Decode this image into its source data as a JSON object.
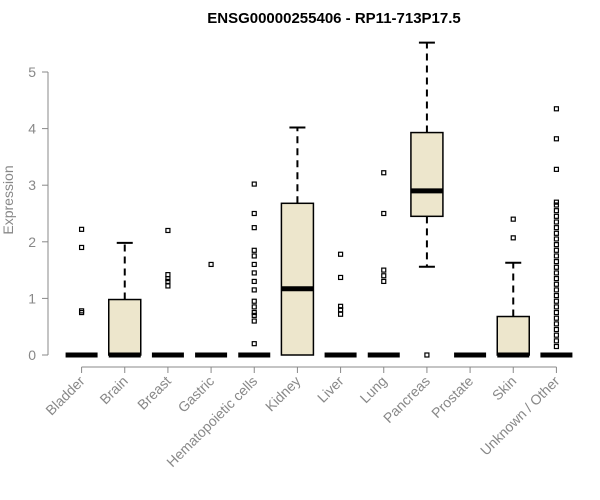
{
  "chart_data": {
    "type": "boxplot",
    "title": "ENSG00000255406 - RP11-713P17.5",
    "xlabel": "",
    "ylabel": "Expression",
    "ylim": [
      0,
      5.5
    ],
    "yticks": [
      0,
      1,
      2,
      3,
      4,
      5
    ],
    "grid": false,
    "box_fill": "#ede6cc",
    "categories": [
      "Bladder",
      "Brain",
      "Breast",
      "Gastric",
      "Hematopoietic cells",
      "Kidney",
      "Liver",
      "Lung",
      "Pancreas",
      "Prostate",
      "Skin",
      "Unknown / Other"
    ],
    "boxes": [
      {
        "min": 0,
        "q1": 0,
        "median": 0,
        "q3": 0,
        "max": 0,
        "outliers": [
          2.22,
          1.9,
          0.78,
          0.75
        ]
      },
      {
        "min": 0,
        "q1": 0,
        "median": 0,
        "q3": 0.98,
        "max": 1.98,
        "outliers": []
      },
      {
        "min": 0,
        "q1": 0,
        "median": 0,
        "q3": 0,
        "max": 0,
        "outliers": [
          2.2,
          1.42,
          1.35,
          1.3,
          1.22
        ]
      },
      {
        "min": 0,
        "q1": 0,
        "median": 0,
        "q3": 0,
        "max": 0,
        "outliers": [
          1.6
        ]
      },
      {
        "min": 0,
        "q1": 0,
        "median": 0,
        "q3": 0,
        "max": 0,
        "outliers": [
          3.02,
          2.5,
          2.25,
          1.85,
          1.75,
          1.6,
          1.45,
          1.3,
          1.15,
          0.95,
          0.85,
          0.75,
          0.7,
          0.6,
          0.2
        ]
      },
      {
        "min": 0,
        "q1": 0,
        "median": 1.17,
        "q3": 2.68,
        "max": 4.02,
        "outliers": []
      },
      {
        "min": 0,
        "q1": 0,
        "median": 0,
        "q3": 0,
        "max": 0,
        "outliers": [
          1.78,
          1.37,
          0.86,
          0.8,
          0.72
        ]
      },
      {
        "min": 0,
        "q1": 0,
        "median": 0,
        "q3": 0,
        "max": 0,
        "outliers": [
          3.22,
          2.5,
          1.5,
          1.4,
          1.3
        ]
      },
      {
        "min": 1.56,
        "q1": 2.45,
        "median": 2.9,
        "q3": 3.93,
        "max": 5.52,
        "outliers": [
          0
        ]
      },
      {
        "min": 0,
        "q1": 0,
        "median": 0,
        "q3": 0,
        "max": 0,
        "outliers": []
      },
      {
        "min": 0,
        "q1": 0,
        "median": 0,
        "q3": 0.68,
        "max": 1.63,
        "outliers": [
          2.4,
          2.07
        ]
      },
      {
        "min": 0,
        "q1": 0,
        "median": 0,
        "q3": 0,
        "max": 0,
        "outliers": [
          4.35,
          3.82,
          3.28,
          2.7,
          2.65,
          2.55,
          2.45,
          2.35,
          2.25,
          2.15,
          2.05,
          1.95,
          1.85,
          1.75,
          1.65,
          1.55,
          1.45,
          1.35,
          1.25,
          1.15,
          1.05,
          0.95,
          0.85,
          0.75,
          0.65,
          0.55,
          0.45,
          0.35,
          0.25,
          0.15
        ]
      }
    ]
  }
}
